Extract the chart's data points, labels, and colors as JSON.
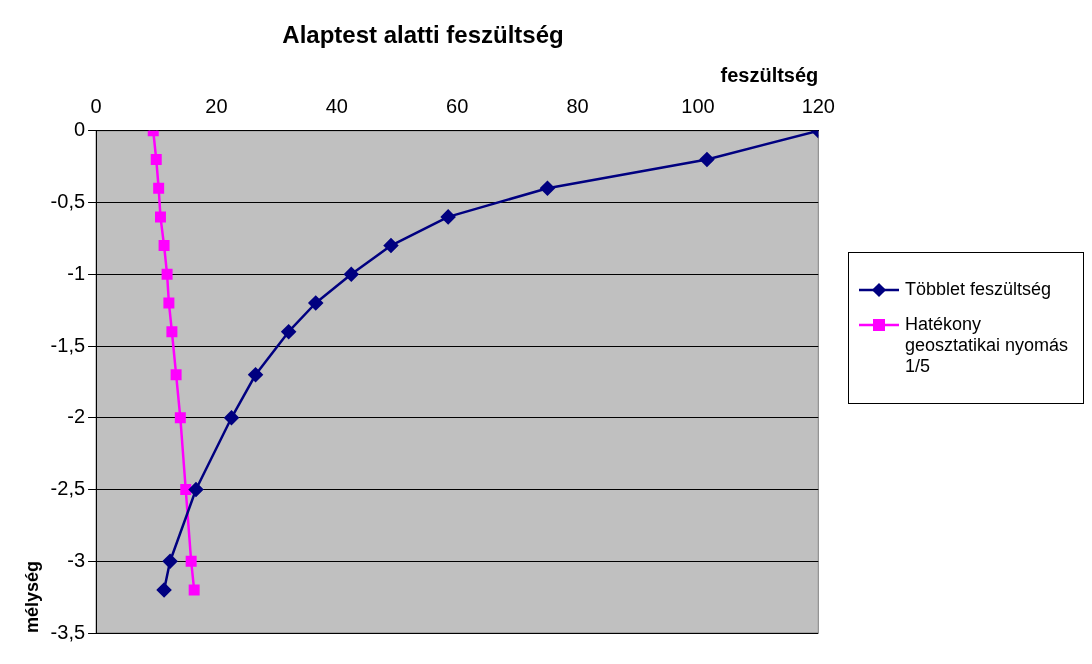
{
  "chart_data": {
    "type": "line",
    "title": "Alaptest alatti feszültség",
    "xlabel": "feszültség",
    "ylabel": "mélység",
    "xlim": [
      0,
      120
    ],
    "xticks": [
      0,
      20,
      40,
      60,
      80,
      100,
      120
    ],
    "ylim": [
      -3.5,
      0
    ],
    "yticks": [
      {
        "value": 0,
        "label": "0"
      },
      {
        "value": -0.5,
        "label": "-0,5"
      },
      {
        "value": -1,
        "label": "-1"
      },
      {
        "value": -1.5,
        "label": "-1,5"
      },
      {
        "value": -2,
        "label": "-2"
      },
      {
        "value": -2.5,
        "label": "-2,5"
      },
      {
        "value": -3,
        "label": "-3"
      },
      {
        "value": -3.5,
        "label": "-3,5"
      }
    ],
    "grid": "y",
    "legend": "right",
    "series": [
      {
        "name": "Többlet feszültség",
        "color": "#000080",
        "marker": "diamond",
        "x": [
          120,
          101.5,
          75,
          58.5,
          49,
          42.4,
          36.5,
          32,
          26.5,
          22.5,
          16.6,
          12.3,
          11.3
        ],
        "values": [
          0,
          -0.2,
          -0.4,
          -0.6,
          -0.8,
          -1,
          -1.2,
          -1.4,
          -1.7,
          -2,
          -2.5,
          -3,
          -3.2
        ]
      },
      {
        "name": "Hatékony geosztatikai nyomás 1/5",
        "color": "#ff00ff",
        "marker": "square",
        "x": [
          9.5,
          10,
          10.4,
          10.7,
          11.3,
          11.8,
          12.1,
          12.6,
          13.3,
          14,
          14.9,
          15.8,
          16.3
        ],
        "values": [
          0,
          -0.2,
          -0.4,
          -0.6,
          -0.8,
          -1,
          -1.2,
          -1.4,
          -1.7,
          -2,
          -2.5,
          -3,
          -3.2
        ]
      }
    ]
  }
}
